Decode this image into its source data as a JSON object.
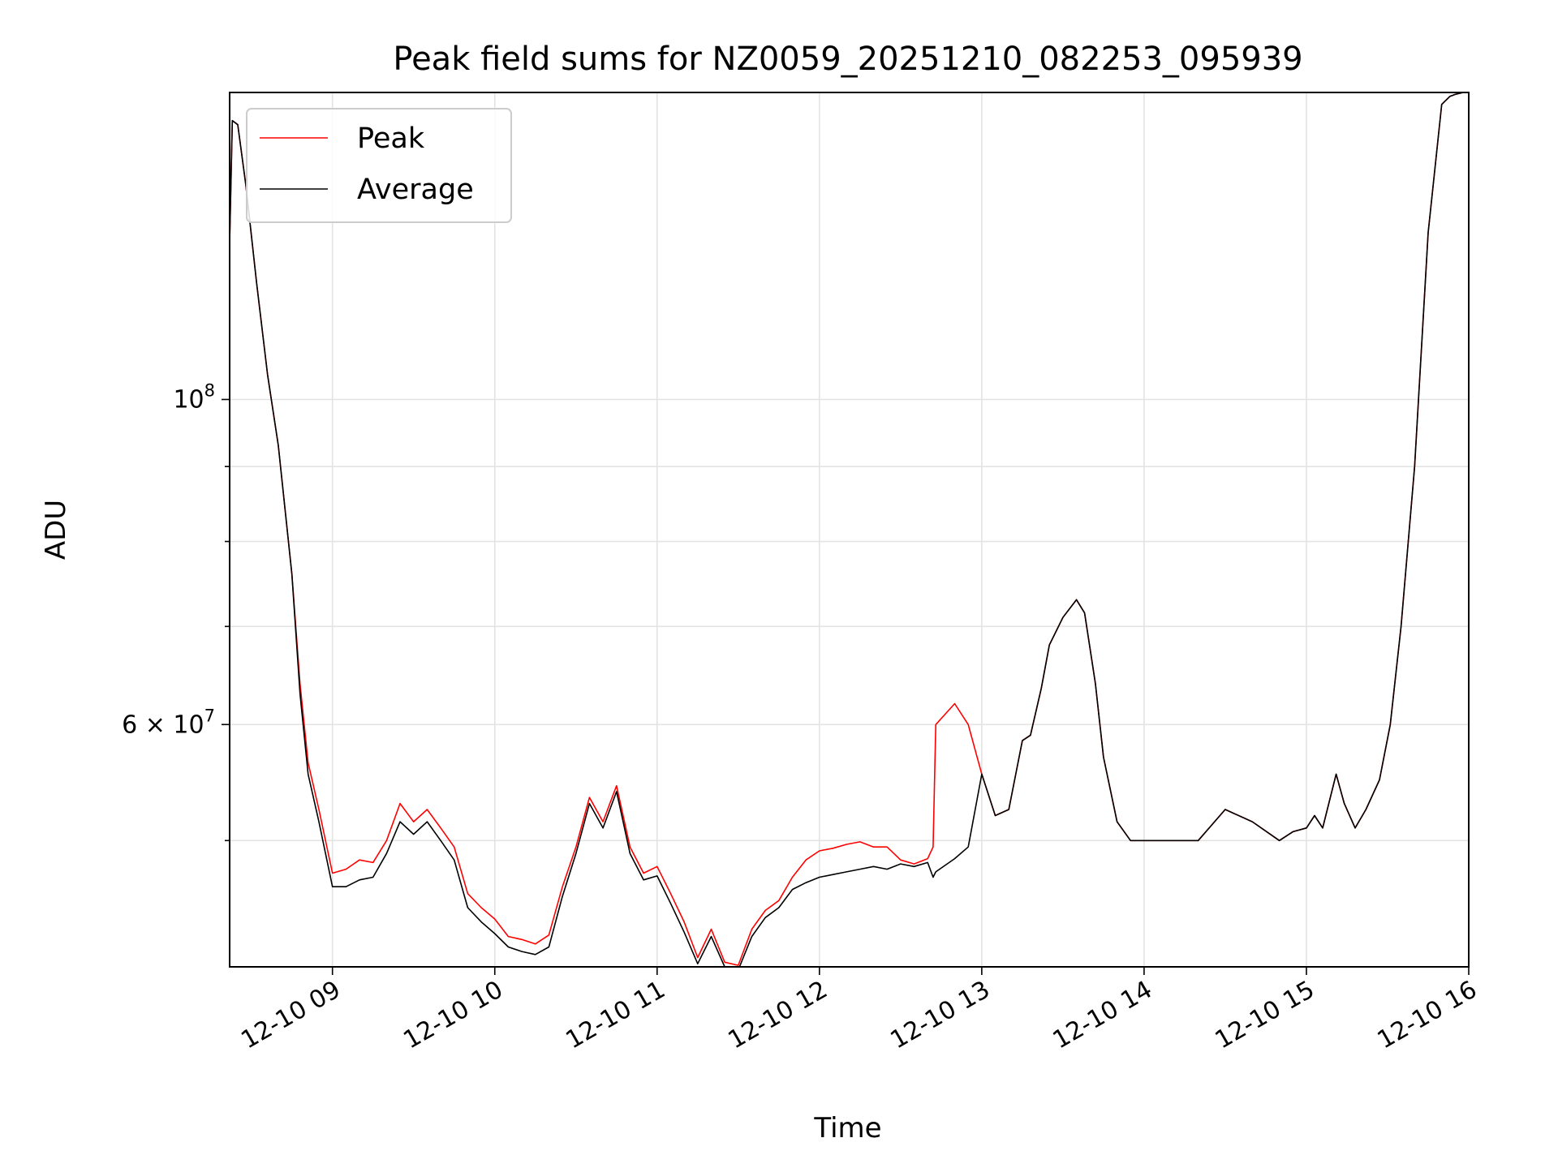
{
  "chart_data": {
    "type": "line",
    "title": "Peak field sums for NZ0059_20251210_082253_095939",
    "xlabel": "Time",
    "ylabel": "ADU",
    "yscale": "log",
    "grid": true,
    "legend_position": "top-left",
    "xlim": [
      "2025-12-10 08:22",
      "2025-12-10 16:00"
    ],
    "ylim": [
      41000000,
      162000000
    ],
    "x_ticks": [
      {
        "value": "2025-12-10 09:00",
        "label": "12-10 09"
      },
      {
        "value": "2025-12-10 10:00",
        "label": "12-10 10"
      },
      {
        "value": "2025-12-10 11:00",
        "label": "12-10 11"
      },
      {
        "value": "2025-12-10 12:00",
        "label": "12-10 12"
      },
      {
        "value": "2025-12-10 13:00",
        "label": "12-10 13"
      },
      {
        "value": "2025-12-10 14:00",
        "label": "12-10 14"
      },
      {
        "value": "2025-12-10 15:00",
        "label": "12-10 15"
      },
      {
        "value": "2025-12-10 16:00",
        "label": "12-10 16"
      }
    ],
    "y_ticks_major": [
      {
        "value": 100000000,
        "label": "10",
        "exp": "8"
      },
      {
        "value": 60000000,
        "label": "6 × 10",
        "exp": "7"
      }
    ],
    "y_ticks_minor": [
      50000000,
      70000000,
      80000000,
      90000000
    ],
    "x": [
      "2025-12-10 08:22",
      "2025-12-10 08:23",
      "2025-12-10 08:25",
      "2025-12-10 08:28",
      "2025-12-10 08:32",
      "2025-12-10 08:36",
      "2025-12-10 08:40",
      "2025-12-10 08:45",
      "2025-12-10 08:48",
      "2025-12-10 08:51",
      "2025-12-10 08:55",
      "2025-12-10 09:00",
      "2025-12-10 09:05",
      "2025-12-10 09:10",
      "2025-12-10 09:15",
      "2025-12-10 09:20",
      "2025-12-10 09:25",
      "2025-12-10 09:30",
      "2025-12-10 09:35",
      "2025-12-10 09:40",
      "2025-12-10 09:45",
      "2025-12-10 09:50",
      "2025-12-10 09:55",
      "2025-12-10 10:00",
      "2025-12-10 10:05",
      "2025-12-10 10:10",
      "2025-12-10 10:15",
      "2025-12-10 10:20",
      "2025-12-10 10:25",
      "2025-12-10 10:30",
      "2025-12-10 10:35",
      "2025-12-10 10:40",
      "2025-12-10 10:45",
      "2025-12-10 10:50",
      "2025-12-10 10:55",
      "2025-12-10 11:00",
      "2025-12-10 11:05",
      "2025-12-10 11:10",
      "2025-12-10 11:15",
      "2025-12-10 11:20",
      "2025-12-10 11:25",
      "2025-12-10 11:30",
      "2025-12-10 11:35",
      "2025-12-10 11:40",
      "2025-12-10 11:45",
      "2025-12-10 11:50",
      "2025-12-10 11:55",
      "2025-12-10 12:00",
      "2025-12-10 12:05",
      "2025-12-10 12:10",
      "2025-12-10 12:15",
      "2025-12-10 12:20",
      "2025-12-10 12:25",
      "2025-12-10 12:30",
      "2025-12-10 12:35",
      "2025-12-10 12:40",
      "2025-12-10 12:42",
      "2025-12-10 12:43",
      "2025-12-10 12:50",
      "2025-12-10 12:55",
      "2025-12-10 13:00",
      "2025-12-10 13:05",
      "2025-12-10 13:10",
      "2025-12-10 13:15",
      "2025-12-10 13:18",
      "2025-12-10 13:22",
      "2025-12-10 13:25",
      "2025-12-10 13:30",
      "2025-12-10 13:35",
      "2025-12-10 13:38",
      "2025-12-10 13:42",
      "2025-12-10 13:45",
      "2025-12-10 13:50",
      "2025-12-10 13:55",
      "2025-12-10 13:58",
      "2025-12-10 14:00",
      "2025-12-10 14:03",
      "2025-12-10 14:06",
      "2025-12-10 14:10",
      "2025-12-10 14:20",
      "2025-12-10 14:30",
      "2025-12-10 14:40",
      "2025-12-10 14:50",
      "2025-12-10 14:55",
      "2025-12-10 15:00",
      "2025-12-10 15:03",
      "2025-12-10 15:06",
      "2025-12-10 15:11",
      "2025-12-10 15:14",
      "2025-12-10 15:18",
      "2025-12-10 15:22",
      "2025-12-10 15:27",
      "2025-12-10 15:31",
      "2025-12-10 15:35",
      "2025-12-10 15:40",
      "2025-12-10 15:45",
      "2025-12-10 15:50",
      "2025-12-10 15:53",
      "2025-12-10 15:55",
      "2025-12-10 15:58",
      "2025-12-10 16:00"
    ],
    "series": [
      {
        "name": "Peak",
        "color": "#ff0000",
        "values": [
          128000000,
          155000000,
          154000000,
          140000000,
          120000000,
          104000000,
          93000000,
          76000000,
          64000000,
          56500000,
          52500000,
          47500000,
          47800000,
          48500000,
          48300000,
          50000000,
          53000000,
          51500000,
          52500000,
          51000000,
          49500000,
          46000000,
          45000000,
          44200000,
          43000000,
          42800000,
          42500000,
          43100000,
          46500000,
          49500000,
          53500000,
          51500000,
          54500000,
          49500000,
          47500000,
          48000000,
          46000000,
          44000000,
          41600000,
          43500000,
          41300000,
          41100000,
          43500000,
          44800000,
          45500000,
          47200000,
          48500000,
          49200000,
          49400000,
          49700000,
          49900000,
          49500000,
          49500000,
          48500000,
          48200000,
          48600000,
          49500000,
          60000000,
          62000000,
          60000000,
          55500000,
          52000000,
          52500000,
          58500000,
          59000000,
          63500000,
          68000000,
          71000000,
          73000000,
          71500000,
          64000000,
          57000000,
          51500000,
          50000000,
          50000000,
          50000000,
          50000000,
          50000000,
          50000000,
          50000000,
          52500000,
          51500000,
          50000000,
          50700000,
          51000000,
          52000000,
          51000000,
          55500000,
          53000000,
          51000000,
          52500000,
          55000000,
          60000000,
          70000000,
          90000000,
          130000000,
          159000000,
          161000000,
          161500000,
          162000000,
          162000000
        ]
      },
      {
        "name": "Average",
        "color": "#000000",
        "values": [
          128000000,
          155000000,
          154000000,
          140000000,
          120000000,
          104000000,
          93000000,
          76000000,
          63000000,
          55500000,
          51500000,
          46500000,
          46500000,
          47000000,
          47200000,
          49000000,
          51500000,
          50500000,
          51500000,
          50000000,
          48500000,
          45000000,
          44000000,
          43200000,
          42300000,
          42000000,
          41800000,
          42300000,
          45800000,
          49000000,
          53000000,
          51000000,
          54000000,
          49000000,
          47000000,
          47300000,
          45300000,
          43300000,
          41200000,
          43000000,
          41000000,
          40800000,
          43000000,
          44300000,
          45000000,
          46300000,
          46800000,
          47200000,
          47400000,
          47600000,
          47800000,
          48000000,
          47800000,
          48200000,
          48000000,
          48300000,
          47200000,
          47600000,
          48600000,
          49500000,
          55500000,
          52000000,
          52500000,
          58500000,
          59000000,
          63500000,
          68000000,
          71000000,
          73000000,
          71500000,
          64000000,
          57000000,
          51500000,
          50000000,
          50000000,
          50000000,
          50000000,
          50000000,
          50000000,
          50000000,
          52500000,
          51500000,
          50000000,
          50700000,
          51000000,
          52000000,
          51000000,
          55500000,
          53000000,
          51000000,
          52500000,
          55000000,
          60000000,
          70000000,
          90000000,
          130000000,
          159000000,
          161000000,
          161500000,
          162000000,
          162000000
        ]
      }
    ]
  }
}
